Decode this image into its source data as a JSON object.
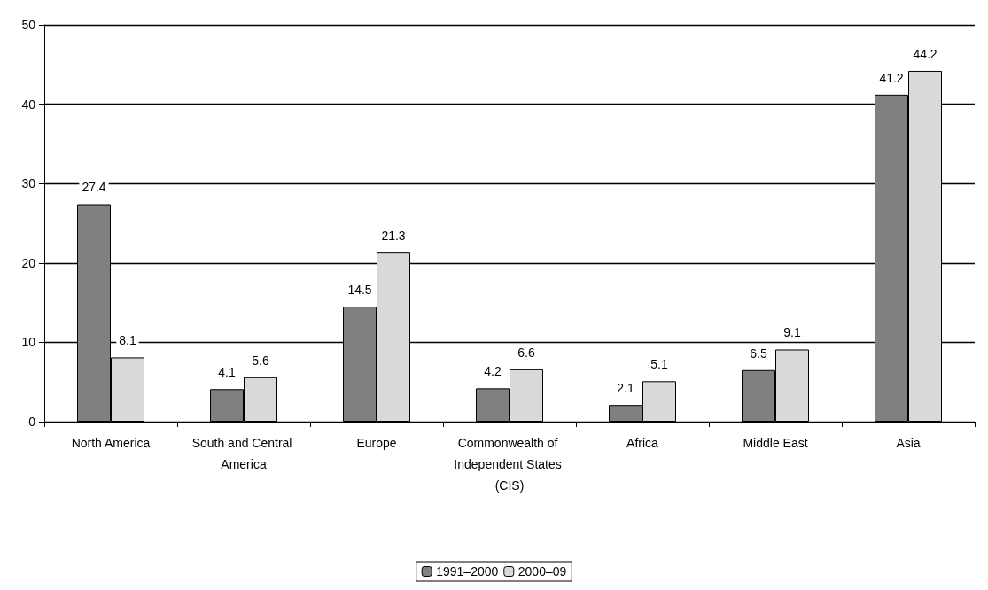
{
  "chart_data": {
    "type": "bar",
    "categories": [
      "North America",
      "South and Central America",
      "Europe",
      "Commonwealth of Independent States (CIS)",
      "Africa",
      "Middle East",
      "Asia"
    ],
    "series": [
      {
        "name": "1991–2000",
        "color": "#808080",
        "values": [
          27.4,
          4.1,
          14.5,
          4.2,
          2.1,
          6.5,
          41.2
        ]
      },
      {
        "name": "2000–09",
        "color": "#d9d9d9",
        "values": [
          8.1,
          5.6,
          21.3,
          6.6,
          5.1,
          9.1,
          44.2
        ]
      }
    ],
    "ylim": [
      0,
      50
    ],
    "yticks": [
      0,
      10,
      20,
      30,
      40,
      50
    ],
    "grid": "y",
    "legend": "bottom",
    "data_labels": true
  }
}
